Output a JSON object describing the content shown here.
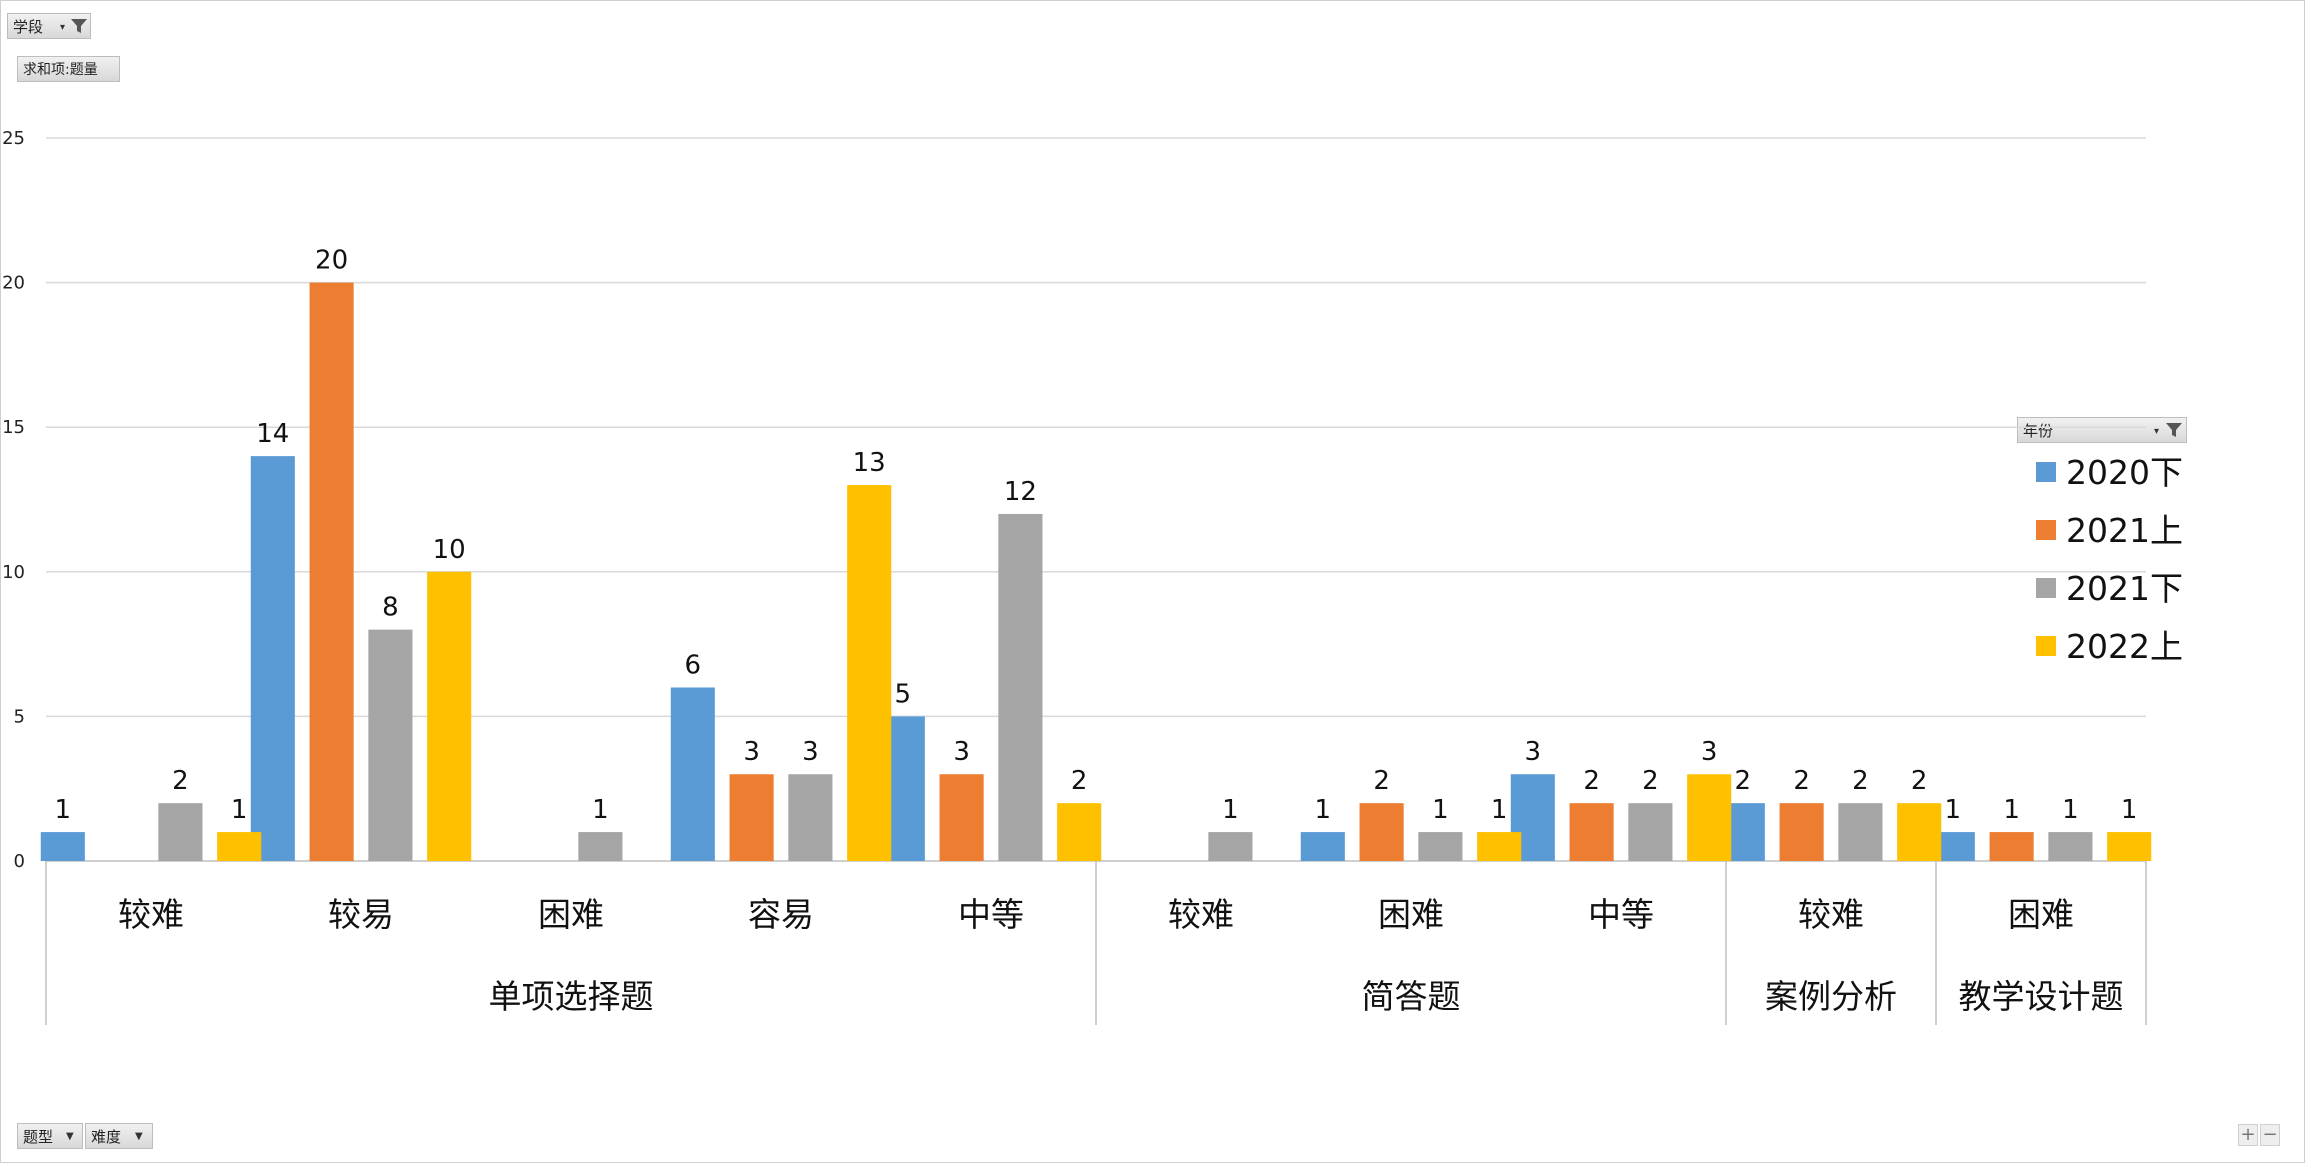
{
  "pivot": {
    "filter_field": "学段",
    "value_field": "求和项:题量",
    "legend_field": "年份",
    "axis_fields": [
      "题型",
      "难度"
    ]
  },
  "controls": {
    "zoom_in": "+",
    "zoom_out": "−"
  },
  "colors": {
    "2020下": "#5B9BD5",
    "2021上": "#ED7D31",
    "2021下": "#A5A5A5",
    "2022上": "#FFC000",
    "grid": "#d9d9d9",
    "axis": "#bfbfbf"
  },
  "chart_data": {
    "type": "bar",
    "title": "",
    "xlabel": "",
    "ylabel": "",
    "ylim": [
      0,
      25
    ],
    "yticks": [
      0,
      5,
      10,
      15,
      20,
      25
    ],
    "grid": true,
    "legend_position": "right",
    "groups": [
      {
        "name": "单项选择题",
        "categories": [
          "较难",
          "较易",
          "困难",
          "容易",
          "中等"
        ]
      },
      {
        "name": "简答题",
        "categories": [
          "较难",
          "困难",
          "中等"
        ]
      },
      {
        "name": "案例分析",
        "categories": [
          "较难"
        ]
      },
      {
        "name": "教学设计题",
        "categories": [
          "困难"
        ]
      }
    ],
    "series": [
      {
        "name": "2020下",
        "values": [
          1,
          14,
          null,
          6,
          5,
          null,
          1,
          3,
          2,
          1
        ]
      },
      {
        "name": "2021上",
        "values": [
          null,
          20,
          null,
          3,
          3,
          null,
          2,
          2,
          2,
          1
        ]
      },
      {
        "name": "2021下",
        "values": [
          2,
          8,
          1,
          3,
          12,
          1,
          1,
          2,
          2,
          1
        ]
      },
      {
        "name": "2022上",
        "values": [
          1,
          10,
          null,
          13,
          2,
          null,
          1,
          3,
          2,
          1
        ]
      }
    ]
  }
}
